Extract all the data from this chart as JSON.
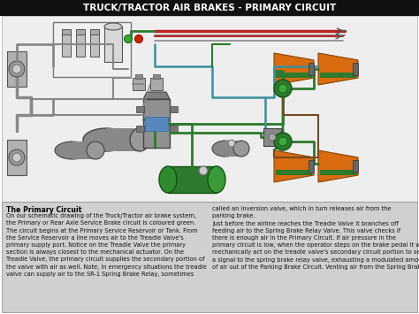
{
  "title": "TRUCK/TRACTOR AIR BRAKES - PRIMARY CIRCUIT",
  "title_bg": "#111111",
  "title_color": "#ffffff",
  "title_fontsize": 7.5,
  "bg_color": "#ffffff",
  "diagram_bg": "#f2f2f2",
  "text_panel_bg": "#d0d0d0",
  "orange": "#d96b10",
  "green_dark": "#2d7a2d",
  "green_bright": "#3aaa3a",
  "gray_dark": "#555555",
  "gray_med": "#888888",
  "gray_light": "#b0b0b0",
  "teal": "#3a8fa0",
  "brown": "#7a4a20",
  "red_line": "#bb2222",
  "text_bold_label": "The Primary Circuit",
  "text_col1": "On our schematic drawing of the Truck/Tractor air brake system,\nthe Primary or Rear Axle Service Brake circuit is coloured green.\nThe circuit begins at the Primary Service Reservoir or Tank. From\nthe Service Reservoir a line moves air to the Treadle Valve's\nprimary supply port. Notice on the Treadle Valve the primary\nsection is always closest to the mechanical actuator. On the\nTreadle Valve, the primary circuit supplies the secondary portion of\nthe valve with air as well. Note, in emergency situations the treadle\nvalve can supply air to the SR-1 Spring Brake Relay, sometimes",
  "text_col2": "called an inversion valve, which in turn releases air from the\nparking brake.\nJust before the airline reaches the Treadle Valve it branches off\nfeeding air to the Spring Brake Relay Valve. This valve checks if\nthere is enough air in the Primary Circuit. If air pressure in the\nprimary circuit is low, when the operator steps on the brake pedal it will\nmechanically act on the treadle valve's secondary circuit portion to send\na signal to the spring brake relay valve, exhausting a modulated amount\nof air out of the Parking Brake Circuit. Venting air from the Spring Brake",
  "text_fontsize": 4.8
}
